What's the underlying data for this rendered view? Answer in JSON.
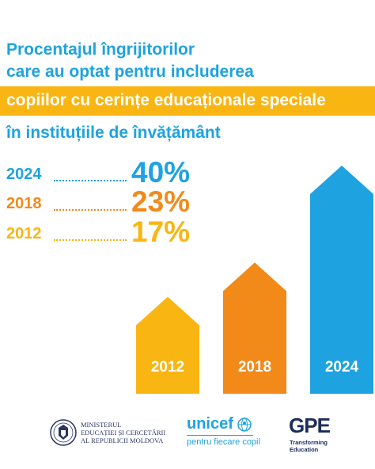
{
  "title_lines": [
    "Procentajul îngrijitorilor",
    "care au optat pentru includerea",
    "copiilor cu cerințe educaționale speciale",
    "în instituțiile de învățământ"
  ],
  "colors": {
    "blue": "#1ea3e0",
    "orange": "#f28a1a",
    "yellow": "#f9b511",
    "navy": "#2a3565"
  },
  "chart_data": {
    "type": "bar",
    "categories": [
      "2012",
      "2018",
      "2024"
    ],
    "values": [
      17,
      23,
      40
    ],
    "unit": "%",
    "stats": [
      {
        "year": "2024",
        "value_label": "40%"
      },
      {
        "year": "2018",
        "value_label": "23%"
      },
      {
        "year": "2012",
        "value_label": "17%"
      }
    ]
  },
  "footer": {
    "ministry_text": "MINISTERUL\nEDUCAȚIEI ȘI CERCETĂRII\nAL REPUBLICII MOLDOVA",
    "unicef_word": "unicef",
    "unicef_tagline": "pentru fiecare copil",
    "gpe_word": "GPE",
    "gpe_tagline": "Transforming\nEducation",
    "icons": [
      "ministry-seal-icon",
      "unicef-globe-icon"
    ]
  }
}
